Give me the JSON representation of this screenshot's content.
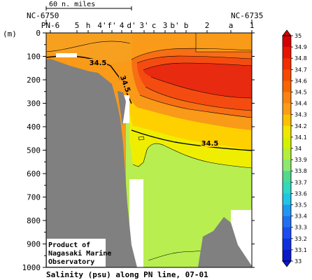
{
  "chart_data": {
    "type": "heatmap",
    "title": "Salinity (psu) along PN line, 07-01",
    "ylabel": "(m)",
    "ylim": [
      1000,
      0
    ],
    "y_ticks": [
      0,
      100,
      200,
      300,
      400,
      500,
      600,
      700,
      800,
      900,
      1000
    ],
    "stations": [
      "PN-6",
      "5",
      "h",
      "4'",
      "f'",
      "4",
      "d'",
      "3'",
      "c",
      "3",
      "b'",
      "b",
      "2",
      "a",
      "1"
    ],
    "station_ids_left": "NC-6750",
    "station_ids_right": "NC-6735",
    "distance_scale_label": "60 n. miles",
    "contour_labels": [
      {
        "value": "34.5",
        "station": "4'",
        "depth": 90
      },
      {
        "value": "34.5",
        "station": "4",
        "depth": 150
      },
      {
        "value": "34.5",
        "station": "b'",
        "depth": 470
      }
    ],
    "colorbar": {
      "labels": [
        "35",
        "34.9",
        "34.8",
        "34.7",
        "34.6",
        "34.5",
        "34.4",
        "34.3",
        "34.2",
        "34.1",
        "34",
        "33.9",
        "33.8",
        "33.7",
        "33.6",
        "33.5",
        "33.4",
        "33.3",
        "33.2",
        "33.1",
        "33"
      ],
      "colors": [
        "#d40000",
        "#e81400",
        "#f22e00",
        "#f64a00",
        "#f86600",
        "#f98210",
        "#fa9c18",
        "#fcc000",
        "#f0e600",
        "#d4f000",
        "#b4ee3c",
        "#8ce870",
        "#50d890",
        "#30d8c0",
        "#20c4e4",
        "#2098f0",
        "#2070f0",
        "#1c4cf0",
        "#1030e0",
        "#0a18c8"
      ]
    },
    "regions": [
      {
        "range": "34.8-34.9",
        "color": "#e82a10"
      },
      {
        "range": "34.7-34.8",
        "color": "#f44c10"
      },
      {
        "range": "34.6-34.7",
        "color": "#f76e14"
      },
      {
        "range": "34.5-34.6",
        "color": "#f99a18"
      },
      {
        "range": "34.4-34.5",
        "color": "#ffd000"
      },
      {
        "range": "34.3-34.4",
        "color": "#f0ee00"
      },
      {
        "range": "34.2-34.3",
        "color": "#ccf230"
      },
      {
        "range": "34.1-34.2",
        "color": "#b8ee50"
      }
    ]
  },
  "credit": {
    "line1": "Product of",
    "line2": "Nagasaki Marine",
    "line3": "Observatory"
  },
  "colors": {
    "bathymetry": "#808080",
    "background": "#ffffff"
  }
}
